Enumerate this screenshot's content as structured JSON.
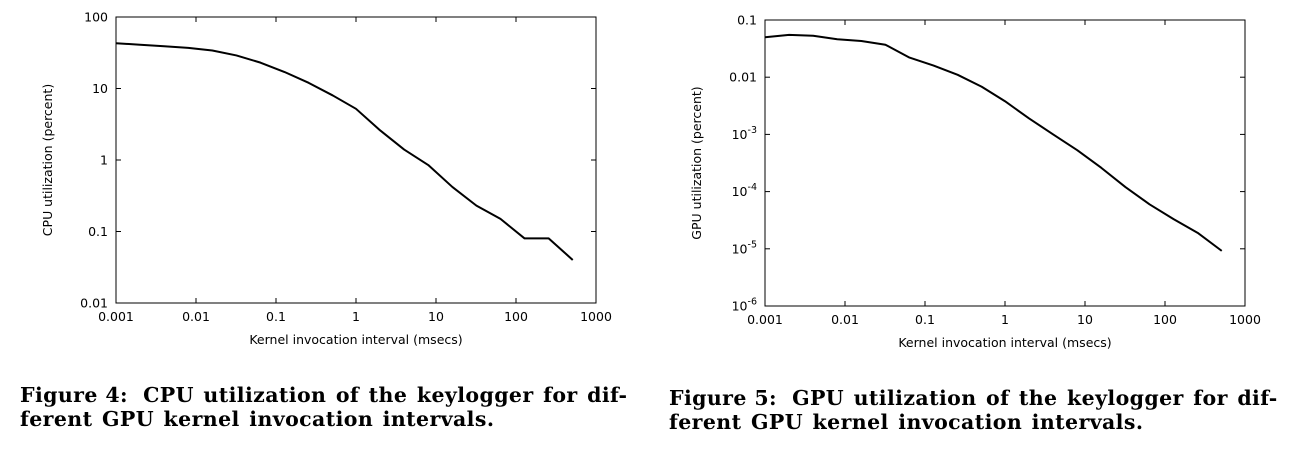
{
  "chart_data": [
    {
      "type": "line",
      "yscale": "log",
      "xscale": "log",
      "xlabel": "Kernel invocation interval (msecs)",
      "ylabel": "CPU utilization (percent)",
      "xlim": [
        0.001,
        1000
      ],
      "ylim": [
        0.01,
        100
      ],
      "grid": false,
      "x_ticks": [
        0.001,
        0.01,
        0.1,
        1,
        10,
        100,
        1000
      ],
      "x_tick_labels": [
        "0.001",
        "0.01",
        "0.1",
        "1",
        "10",
        "100",
        "1000"
      ],
      "y_ticks": [
        0.01,
        0.1,
        1,
        10,
        100
      ],
      "y_tick_labels": [
        "0.01",
        "0.1",
        "1",
        "10",
        "100"
      ],
      "series": [
        {
          "name": "CPU utilization",
          "x": [
            0.001,
            0.002,
            0.004,
            0.008,
            0.016,
            0.032,
            0.064,
            0.128,
            0.256,
            0.512,
            1,
            2,
            4,
            8,
            16,
            32,
            64,
            128,
            256,
            512
          ],
          "y": [
            43,
            41,
            39,
            37,
            34,
            29,
            23,
            17,
            12,
            8,
            5.2,
            2.6,
            1.4,
            0.85,
            0.42,
            0.23,
            0.15,
            0.08,
            0.08,
            0.04
          ]
        }
      ]
    },
    {
      "type": "line",
      "yscale": "log",
      "xscale": "log",
      "xlabel": "Kernel invocation interval (msecs)",
      "ylabel": "GPU utilization (percent)",
      "xlim": [
        0.001,
        1000
      ],
      "ylim": [
        1e-06,
        0.1
      ],
      "grid": false,
      "x_ticks": [
        0.001,
        0.01,
        0.1,
        1,
        10,
        100,
        1000
      ],
      "x_tick_labels": [
        "0.001",
        "0.01",
        "0.1",
        "1",
        "10",
        "100",
        "1000"
      ],
      "y_ticks": [
        1e-06,
        1e-05,
        0.0001,
        0.001,
        0.01,
        0.1
      ],
      "y_tick_labels": [
        {
          "base": "10",
          "exp": "-6"
        },
        {
          "base": "10",
          "exp": "-5"
        },
        {
          "base": "10",
          "exp": "-4"
        },
        {
          "base": "10",
          "exp": "-3"
        },
        {
          "text": "0.01"
        },
        {
          "text": "0.1"
        }
      ],
      "series": [
        {
          "name": "GPU utilization",
          "x": [
            0.001,
            0.002,
            0.004,
            0.008,
            0.016,
            0.032,
            0.064,
            0.128,
            0.256,
            0.512,
            1,
            2,
            4,
            8,
            16,
            32,
            64,
            128,
            256,
            512
          ],
          "y": [
            0.05,
            0.055,
            0.053,
            0.046,
            0.043,
            0.037,
            0.022,
            0.016,
            0.011,
            0.0068,
            0.0038,
            0.0019,
            0.001,
            0.00053,
            0.00026,
            0.00012,
            6e-05,
            3.3e-05,
            1.9e-05,
            9.2e-06
          ]
        }
      ]
    }
  ],
  "captions": [
    {
      "label": "Figure 4:",
      "line1": "CPU utilization of the keylogger for dif-",
      "line2": "ferent GPU kernel invocation intervals."
    },
    {
      "label": "Figure 5:",
      "line1": "GPU utilization of the keylogger for dif-",
      "line2": "ferent GPU kernel invocation intervals."
    }
  ]
}
